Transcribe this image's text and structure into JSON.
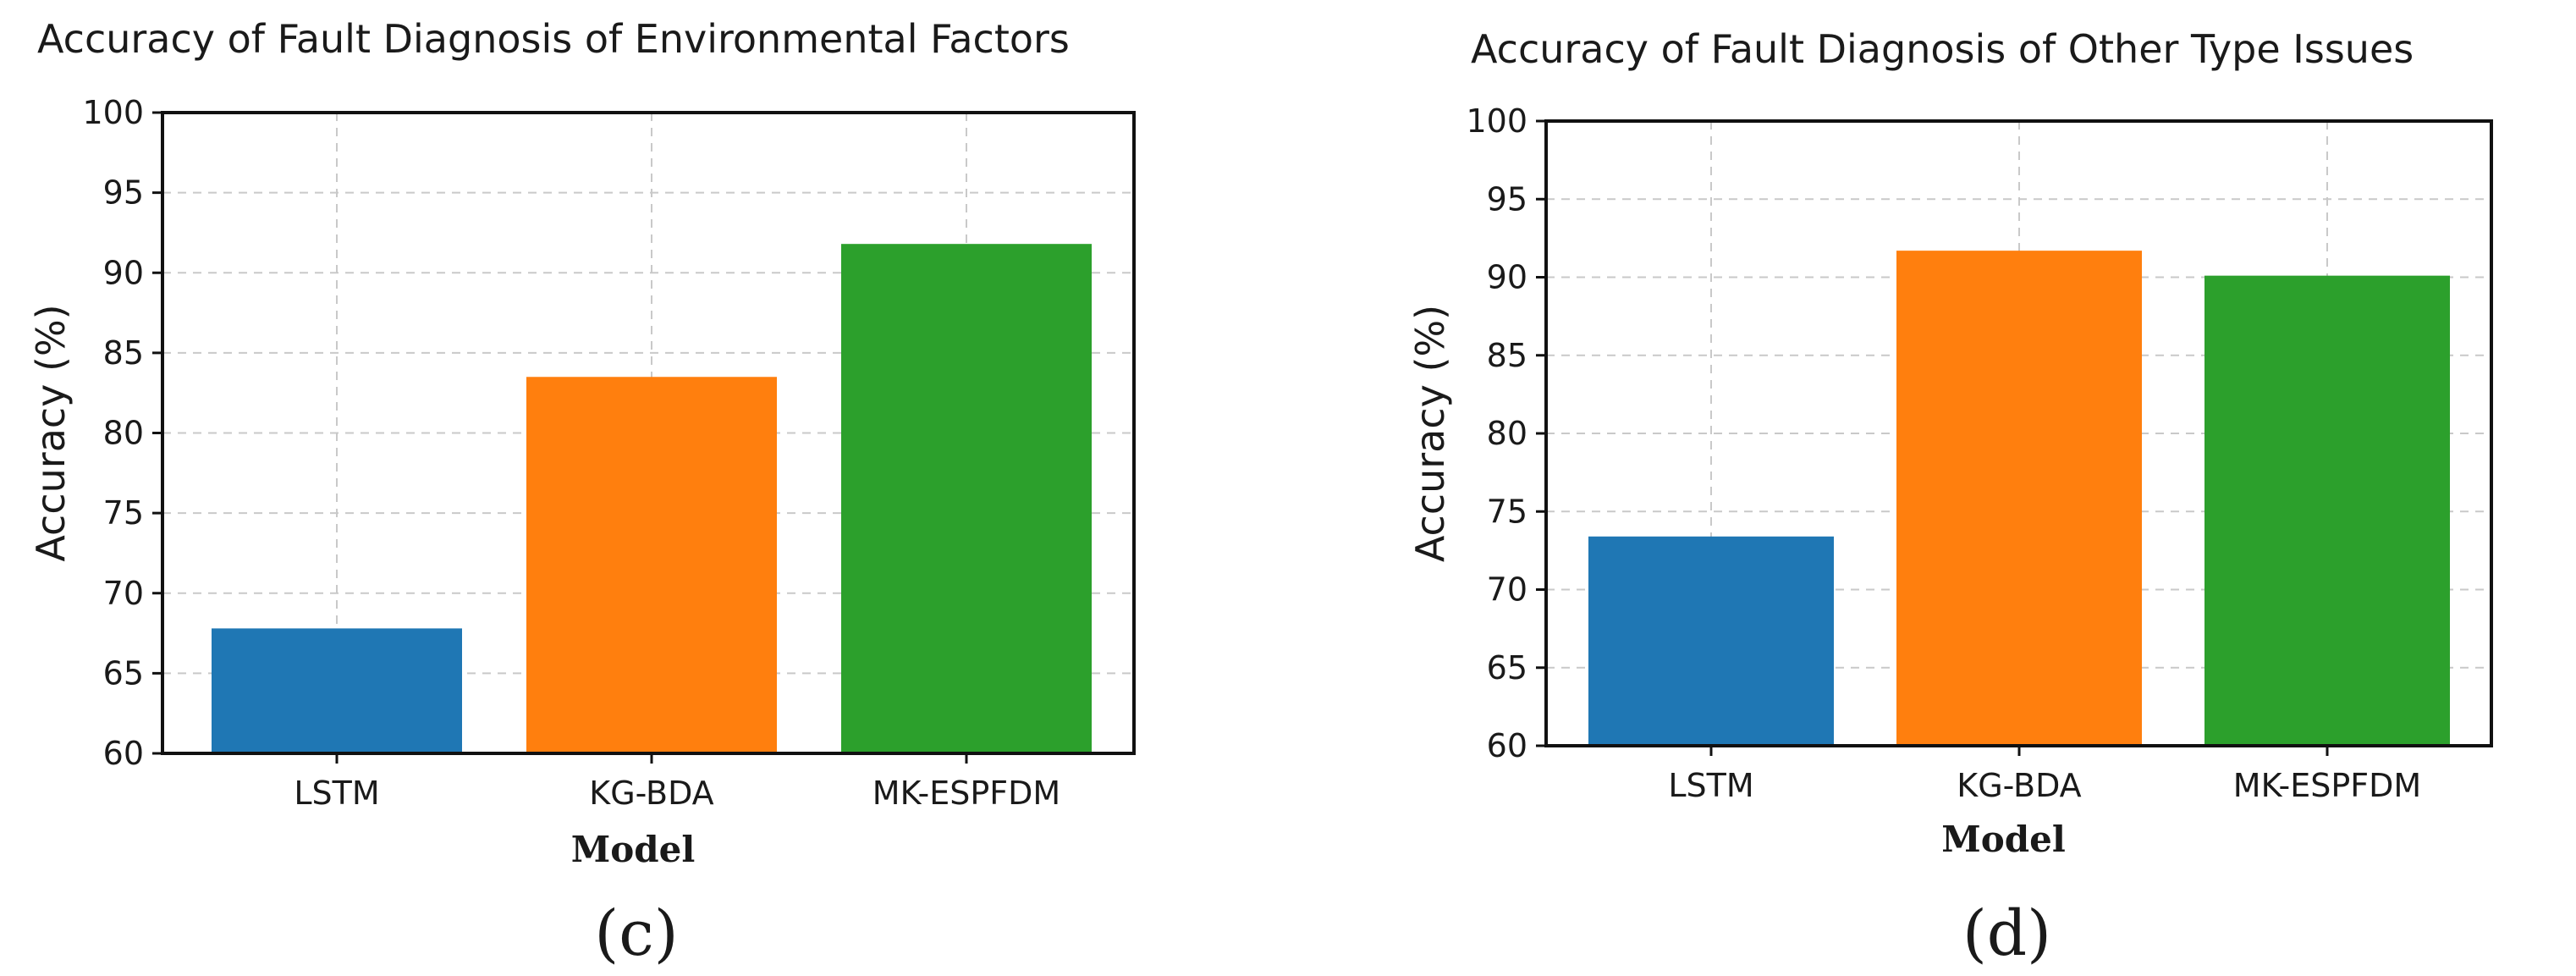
{
  "chart_data": [
    {
      "type": "bar",
      "title": "Accuracy of Fault Diagnosis of Environmental Factors",
      "xlabel": "Model",
      "ylabel": "Accuracy (%)",
      "panel": "(c)",
      "categories": [
        "LSTM",
        "KG-BDA",
        "MK-ESPFDM"
      ],
      "values": [
        67.8,
        83.5,
        91.8
      ],
      "colors": [
        "#1f77b4",
        "#ff7f0e",
        "#2ca02c"
      ],
      "ylim": [
        60,
        100
      ],
      "yticks": [
        "60",
        "65",
        "70",
        "75",
        "80",
        "85",
        "90",
        "95",
        "100"
      ],
      "grid": true
    },
    {
      "type": "bar",
      "title": "Accuracy of Fault Diagnosis of Other Type Issues",
      "xlabel": "Model",
      "ylabel": "Accuracy (%)",
      "panel": "(d)",
      "categories": [
        "LSTM",
        "KG-BDA",
        "MK-ESPFDM"
      ],
      "values": [
        73.4,
        91.7,
        90.1
      ],
      "colors": [
        "#1f77b4",
        "#ff7f0e",
        "#2ca02c"
      ],
      "ylim": [
        60,
        100
      ],
      "yticks": [
        "60",
        "65",
        "70",
        "75",
        "80",
        "85",
        "90",
        "95",
        "100"
      ],
      "grid": true
    }
  ]
}
